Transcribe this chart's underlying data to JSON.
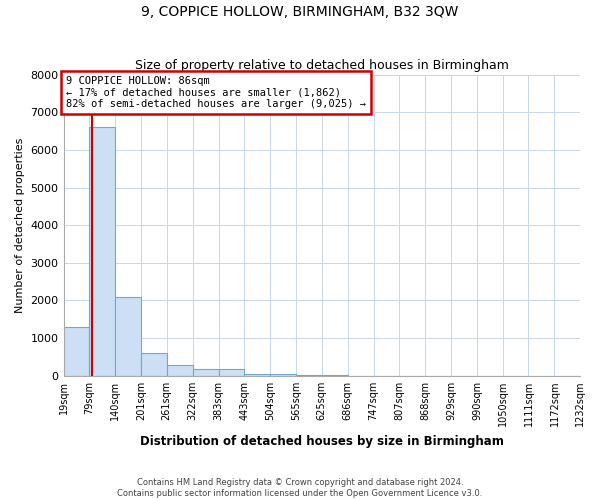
{
  "title": "9, COPPICE HOLLOW, BIRMINGHAM, B32 3QW",
  "subtitle": "Size of property relative to detached houses in Birmingham",
  "xlabel": "Distribution of detached houses by size in Birmingham",
  "ylabel": "Number of detached properties",
  "footer_line1": "Contains HM Land Registry data © Crown copyright and database right 2024.",
  "footer_line2": "Contains public sector information licensed under the Open Government Licence v3.0.",
  "annotation_title": "9 COPPICE HOLLOW: 86sqm",
  "annotation_line1": "← 17% of detached houses are smaller (1,862)",
  "annotation_line2": "82% of semi-detached houses are larger (9,025) →",
  "property_size_sqm": 86,
  "bar_edges": [
    19,
    79,
    140,
    201,
    261,
    322,
    383,
    443,
    504,
    565,
    625,
    686,
    747,
    807,
    868,
    929,
    990,
    1050,
    1111,
    1172,
    1232
  ],
  "bar_heights": [
    1300,
    6600,
    2100,
    600,
    280,
    180,
    175,
    50,
    40,
    30,
    10,
    5,
    3,
    2,
    2,
    1,
    1,
    1,
    1,
    1
  ],
  "bar_color": "#ccdff5",
  "bar_edge_color": "#6aaad4",
  "vline_color": "#cc0000",
  "vline_x": 86,
  "annotation_box_color": "#cc0000",
  "background_color": "#ffffff",
  "grid_color": "#c8d8ea",
  "ylim": [
    0,
    8000
  ],
  "yticks": [
    0,
    1000,
    2000,
    3000,
    4000,
    5000,
    6000,
    7000,
    8000
  ]
}
